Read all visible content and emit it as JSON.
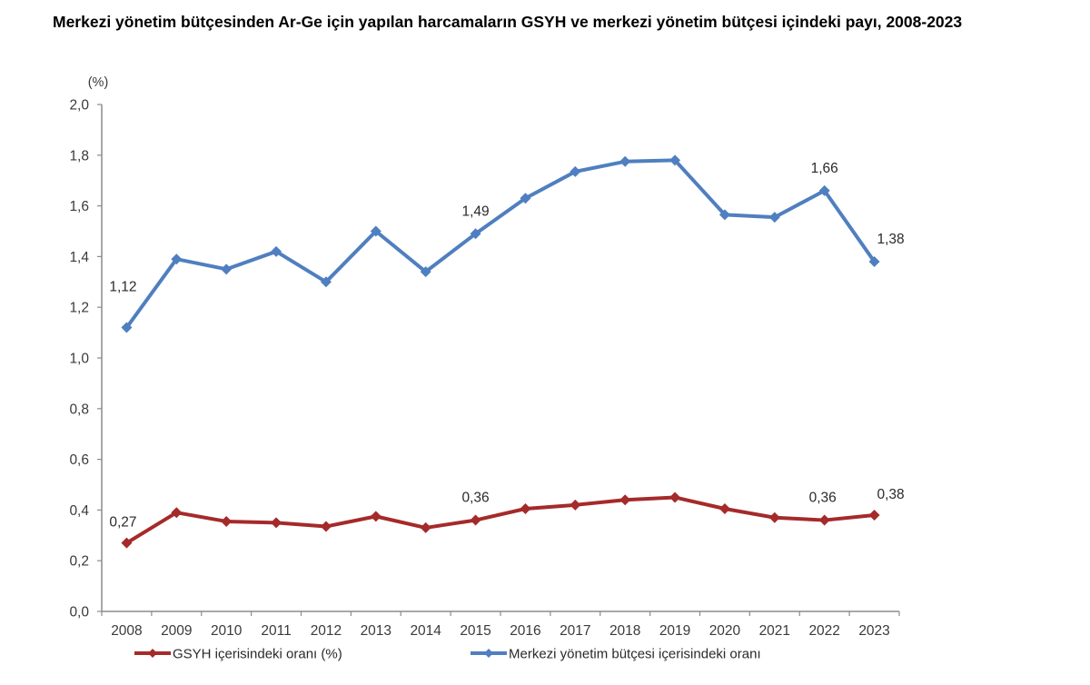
{
  "title": "Merkezi yönetim bütçesinden Ar-Ge için yapılan harcamaların GSYH ve merkezi yönetim bütçesi içindeki payı, 2008-2023",
  "chart_data": {
    "type": "line",
    "title": "Merkezi yönetim bütçesinden Ar-Ge için yapılan harcamaların GSYH ve merkezi yönetim bütçesi içindeki payı, 2008-2023",
    "xlabel": "",
    "ylabel": "(%)",
    "ylim": [
      0,
      2.0
    ],
    "yticks": [
      0.0,
      0.2,
      0.4,
      0.6,
      0.8,
      1.0,
      1.2,
      1.4,
      1.6,
      1.8,
      2.0
    ],
    "ytick_labels": [
      "0,0",
      "0,2",
      "0,4",
      "0,6",
      "0,8",
      "1,0",
      "1,2",
      "1,4",
      "1,6",
      "1,8",
      "2,0"
    ],
    "grid": false,
    "legend_position": "bottom",
    "categories": [
      "2008",
      "2009",
      "2010",
      "2011",
      "2012",
      "2013",
      "2014",
      "2015",
      "2016",
      "2017",
      "2018",
      "2019",
      "2020",
      "2021",
      "2022",
      "2023"
    ],
    "series": [
      {
        "name": "GSYH içerisindeki oranı (%)",
        "color": "#A52A2A",
        "values": [
          0.27,
          0.39,
          0.355,
          0.35,
          0.335,
          0.375,
          0.33,
          0.36,
          0.405,
          0.42,
          0.44,
          0.45,
          0.405,
          0.37,
          0.36,
          0.38
        ],
        "labels": [
          {
            "index": 0,
            "text": "0,27"
          },
          {
            "index": 7,
            "text": "0,36"
          },
          {
            "index": 14,
            "text": "0,36"
          },
          {
            "index": 15,
            "text": "0,38"
          }
        ]
      },
      {
        "name": "Merkezi yönetim bütçesi içerisindeki oranı",
        "color": "#4F7FC0",
        "values": [
          1.12,
          1.39,
          1.35,
          1.42,
          1.3,
          1.5,
          1.34,
          1.49,
          1.63,
          1.735,
          1.775,
          1.78,
          1.565,
          1.555,
          1.66,
          1.38
        ],
        "labels": [
          {
            "index": 0,
            "text": "1,12"
          },
          {
            "index": 7,
            "text": "1,49"
          },
          {
            "index": 14,
            "text": "1,66"
          },
          {
            "index": 15,
            "text": "1,38"
          }
        ]
      }
    ]
  }
}
